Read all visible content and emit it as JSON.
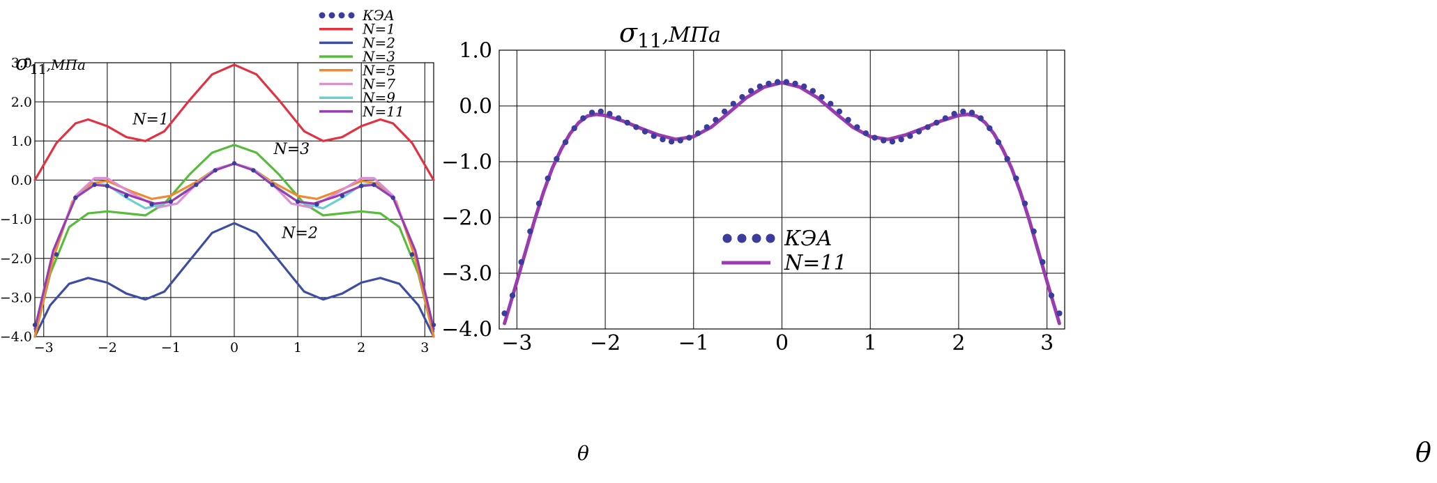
{
  "colors": {
    "fem": "#3c3c9c",
    "n1": "#e23242",
    "n2": "#3d4da3",
    "n3": "#57bb3c",
    "n5": "#f2882e",
    "n7": "#dc8fd6",
    "n9": "#6ccfd0",
    "n11": "#9a3bb0",
    "grid": "#000000"
  },
  "chart_data": [
    {
      "type": "line",
      "title": "",
      "ylabel_symbol": "σ",
      "ylabel_sub": "11",
      "ylabel_unit": ",МПа",
      "xlabel": "θ",
      "xlim": [
        -3.14,
        3.14
      ],
      "ylim": [
        -4.0,
        3.0
      ],
      "xticks": [
        -3,
        -2,
        -1,
        0,
        1,
        2,
        3
      ],
      "xtick_labels": [
        "−3",
        "−2",
        "−1",
        "0",
        "1",
        "2",
        "3"
      ],
      "yticks": [
        3.0,
        2.0,
        1.0,
        0.0,
        -1.0,
        -2.0,
        -3.0,
        -4.0
      ],
      "ytick_labels": [
        "3.0",
        "2.0",
        "1.0",
        "0.0",
        "−1.0",
        "−2.0",
        "−3.0",
        "−4.0"
      ],
      "grid": true,
      "legend_position": "top-center",
      "series": [
        {
          "name": "КЭА",
          "style": "dots",
          "color_key": "fem",
          "x": [
            -3.14,
            -2.8,
            -2.5,
            -2.2,
            -2.0,
            -1.7,
            -1.3,
            -1.0,
            -0.6,
            -0.3,
            0.0,
            0.3,
            0.6,
            1.0,
            1.3,
            1.7,
            2.0,
            2.2,
            2.5,
            2.8,
            3.14
          ],
          "y": [
            -3.7,
            -1.9,
            -0.45,
            -0.12,
            -0.15,
            -0.4,
            -0.62,
            -0.55,
            -0.12,
            0.25,
            0.43,
            0.25,
            -0.12,
            -0.55,
            -0.62,
            -0.4,
            -0.15,
            -0.12,
            -0.45,
            -1.9,
            -3.7
          ]
        },
        {
          "name": "N=1",
          "style": "line",
          "color_key": "n1",
          "x": [
            -3.14,
            -2.8,
            -2.5,
            -2.3,
            -2.0,
            -1.7,
            -1.4,
            -1.1,
            -0.7,
            -0.35,
            0.0,
            0.35,
            0.7,
            1.1,
            1.4,
            1.7,
            2.0,
            2.3,
            2.5,
            2.8,
            3.14
          ],
          "y": [
            0.0,
            0.95,
            1.45,
            1.55,
            1.38,
            1.1,
            1.0,
            1.25,
            2.05,
            2.7,
            2.95,
            2.7,
            2.05,
            1.25,
            1.0,
            1.1,
            1.38,
            1.55,
            1.45,
            0.95,
            0.0
          ]
        },
        {
          "name": "N=2",
          "style": "line",
          "color_key": "n2",
          "x": [
            -3.14,
            -2.9,
            -2.6,
            -2.3,
            -2.0,
            -1.7,
            -1.4,
            -1.1,
            -0.7,
            -0.35,
            0.0,
            0.35,
            0.7,
            1.1,
            1.4,
            1.7,
            2.0,
            2.3,
            2.6,
            2.9,
            3.14
          ],
          "y": [
            -4.0,
            -3.2,
            -2.65,
            -2.5,
            -2.62,
            -2.9,
            -3.05,
            -2.85,
            -2.05,
            -1.35,
            -1.1,
            -1.35,
            -2.05,
            -2.85,
            -3.05,
            -2.9,
            -2.62,
            -2.5,
            -2.65,
            -3.2,
            -4.0
          ]
        },
        {
          "name": "N=3",
          "style": "line",
          "color_key": "n3",
          "x": [
            -3.14,
            -2.9,
            -2.6,
            -2.3,
            -2.0,
            -1.7,
            -1.4,
            -1.1,
            -0.7,
            -0.35,
            0.0,
            0.35,
            0.7,
            1.1,
            1.4,
            1.7,
            2.0,
            2.3,
            2.6,
            2.9,
            3.14
          ],
          "y": [
            -4.0,
            -2.4,
            -1.2,
            -0.85,
            -0.8,
            -0.85,
            -0.9,
            -0.6,
            0.15,
            0.7,
            0.9,
            0.7,
            0.15,
            -0.6,
            -0.9,
            -0.85,
            -0.8,
            -0.85,
            -1.2,
            -2.4,
            -4.0
          ]
        },
        {
          "name": "N=5",
          "style": "line",
          "color_key": "n5",
          "x": [
            -3.14,
            -2.85,
            -2.55,
            -2.25,
            -2.0,
            -1.6,
            -1.3,
            -1.0,
            -0.6,
            -0.3,
            0.0,
            0.3,
            0.6,
            1.0,
            1.3,
            1.6,
            2.0,
            2.25,
            2.55,
            2.85,
            3.14
          ],
          "y": [
            -4.0,
            -2.0,
            -0.55,
            -0.08,
            -0.02,
            -0.3,
            -0.48,
            -0.4,
            -0.05,
            0.28,
            0.42,
            0.28,
            -0.05,
            -0.4,
            -0.48,
            -0.3,
            -0.02,
            -0.08,
            -0.55,
            -2.0,
            -4.0
          ]
        },
        {
          "name": "N=7",
          "style": "line",
          "color_key": "n7",
          "x": [
            -3.14,
            -2.85,
            -2.5,
            -2.2,
            -2.0,
            -1.6,
            -1.2,
            -0.9,
            -0.6,
            -0.3,
            0.0,
            0.3,
            0.6,
            0.9,
            1.2,
            1.6,
            2.0,
            2.2,
            2.5,
            2.85,
            3.14
          ],
          "y": [
            -3.8,
            -1.8,
            -0.4,
            0.05,
            0.05,
            -0.35,
            -0.7,
            -0.6,
            -0.1,
            0.28,
            0.42,
            0.28,
            -0.1,
            -0.6,
            -0.7,
            -0.35,
            0.05,
            0.05,
            -0.4,
            -1.8,
            -3.8
          ]
        },
        {
          "name": "N=9",
          "style": "line",
          "color_key": "n9",
          "x": [
            -3.14,
            -2.85,
            -2.5,
            -2.2,
            -2.0,
            -1.7,
            -1.4,
            -1.0,
            -0.6,
            -0.3,
            0.0,
            0.3,
            0.6,
            1.0,
            1.4,
            1.7,
            2.0,
            2.2,
            2.5,
            2.85,
            3.14
          ],
          "y": [
            -3.8,
            -1.8,
            -0.45,
            -0.1,
            -0.12,
            -0.45,
            -0.72,
            -0.55,
            -0.1,
            0.26,
            0.42,
            0.26,
            -0.1,
            -0.55,
            -0.72,
            -0.45,
            -0.12,
            -0.1,
            -0.45,
            -1.8,
            -3.8
          ]
        },
        {
          "name": "N=11",
          "style": "line",
          "color_key": "n11",
          "x": [
            -3.14,
            -2.85,
            -2.5,
            -2.2,
            -2.0,
            -1.6,
            -1.25,
            -1.0,
            -0.6,
            -0.3,
            0.0,
            0.3,
            0.6,
            1.0,
            1.25,
            1.6,
            2.0,
            2.2,
            2.5,
            2.85,
            3.14
          ],
          "y": [
            -3.8,
            -1.8,
            -0.45,
            -0.12,
            -0.15,
            -0.42,
            -0.6,
            -0.55,
            -0.12,
            0.25,
            0.42,
            0.25,
            -0.12,
            -0.55,
            -0.6,
            -0.42,
            -0.15,
            -0.12,
            -0.45,
            -1.8,
            -3.8
          ]
        }
      ],
      "annotations": [
        {
          "text": "N=1",
          "x": -1.6,
          "y": 1.42
        },
        {
          "text": "N=3",
          "x": 0.62,
          "y": 0.67
        },
        {
          "text": "N=2",
          "x": 0.75,
          "y": -1.48
        }
      ]
    },
    {
      "type": "line",
      "title": "",
      "ylabel_symbol": "σ",
      "ylabel_sub": "11",
      "ylabel_unit": ",МПа",
      "xlabel": "θ",
      "xlim": [
        -3.2,
        3.2
      ],
      "ylim": [
        -4.0,
        1.0
      ],
      "xticks": [
        -3,
        -2,
        -1,
        0,
        1,
        2,
        3
      ],
      "xtick_labels": [
        "−3",
        "−2",
        "−1",
        "0",
        "1",
        "2",
        "3"
      ],
      "yticks": [
        1.0,
        0.0,
        -1.0,
        -2.0,
        -3.0,
        -4.0
      ],
      "ytick_labels": [
        "1.0",
        "0.0",
        "−1.0",
        "−2.0",
        "−3.0",
        "−4.0"
      ],
      "grid": true,
      "legend_position": "lower-center",
      "series": [
        {
          "name": "КЭА",
          "style": "dots",
          "color_key": "fem",
          "x": [
            -3.14,
            -3.05,
            -2.95,
            -2.85,
            -2.75,
            -2.65,
            -2.55,
            -2.45,
            -2.35,
            -2.25,
            -2.15,
            -2.05,
            -1.95,
            -1.85,
            -1.75,
            -1.65,
            -1.55,
            -1.45,
            -1.35,
            -1.25,
            -1.15,
            -1.05,
            -0.95,
            -0.85,
            -0.75,
            -0.65,
            -0.55,
            -0.45,
            -0.35,
            -0.25,
            -0.15,
            -0.05,
            0.05,
            0.15,
            0.25,
            0.35,
            0.45,
            0.55,
            0.65,
            0.75,
            0.85,
            0.95,
            1.05,
            1.15,
            1.25,
            1.35,
            1.45,
            1.55,
            1.65,
            1.75,
            1.85,
            1.95,
            2.05,
            2.15,
            2.25,
            2.35,
            2.45,
            2.55,
            2.65,
            2.75,
            2.85,
            2.95,
            3.05,
            3.14
          ],
          "y": [
            -3.72,
            -3.4,
            -2.8,
            -2.25,
            -1.75,
            -1.3,
            -0.95,
            -0.65,
            -0.4,
            -0.22,
            -0.12,
            -0.1,
            -0.14,
            -0.22,
            -0.3,
            -0.38,
            -0.46,
            -0.54,
            -0.6,
            -0.64,
            -0.62,
            -0.57,
            -0.49,
            -0.38,
            -0.25,
            -0.1,
            0.04,
            0.16,
            0.27,
            0.35,
            0.4,
            0.43,
            0.43,
            0.4,
            0.35,
            0.27,
            0.16,
            0.04,
            -0.1,
            -0.25,
            -0.38,
            -0.49,
            -0.57,
            -0.62,
            -0.64,
            -0.6,
            -0.54,
            -0.46,
            -0.38,
            -0.3,
            -0.22,
            -0.14,
            -0.1,
            -0.12,
            -0.22,
            -0.4,
            -0.65,
            -0.95,
            -1.3,
            -1.75,
            -2.25,
            -2.8,
            -3.4,
            -3.72
          ]
        },
        {
          "name": "N=11",
          "style": "line",
          "color_key": "n11",
          "x": [
            -3.14,
            -3.0,
            -2.9,
            -2.8,
            -2.7,
            -2.6,
            -2.5,
            -2.4,
            -2.3,
            -2.2,
            -2.1,
            -2.0,
            -1.8,
            -1.6,
            -1.4,
            -1.2,
            -1.0,
            -0.8,
            -0.6,
            -0.4,
            -0.2,
            0.0,
            0.2,
            0.4,
            0.6,
            0.8,
            1.0,
            1.2,
            1.4,
            1.6,
            1.8,
            2.0,
            2.1,
            2.2,
            2.3,
            2.4,
            2.5,
            2.6,
            2.7,
            2.8,
            2.9,
            3.0,
            3.14
          ],
          "y": [
            -3.9,
            -3.15,
            -2.6,
            -2.05,
            -1.55,
            -1.12,
            -0.78,
            -0.5,
            -0.3,
            -0.18,
            -0.15,
            -0.17,
            -0.27,
            -0.4,
            -0.52,
            -0.6,
            -0.55,
            -0.38,
            -0.12,
            0.15,
            0.34,
            0.42,
            0.34,
            0.15,
            -0.12,
            -0.38,
            -0.55,
            -0.6,
            -0.52,
            -0.4,
            -0.27,
            -0.17,
            -0.15,
            -0.18,
            -0.3,
            -0.5,
            -0.78,
            -1.12,
            -1.55,
            -2.05,
            -2.6,
            -3.15,
            -3.9
          ]
        }
      ]
    }
  ]
}
